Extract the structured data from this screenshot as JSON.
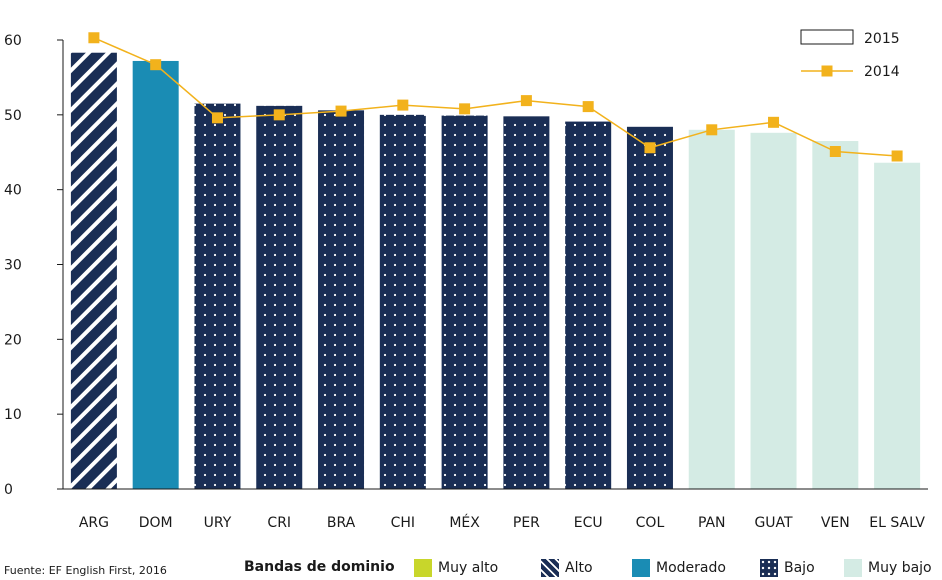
{
  "chart_data": {
    "type": "bar",
    "title": "",
    "xlabel": "",
    "ylabel": "",
    "ylim": [
      0,
      60
    ],
    "yticks": [
      0,
      10,
      20,
      30,
      40,
      50,
      60
    ],
    "categories": [
      "ARG",
      "DOM",
      "URY",
      "CRI",
      "BRA",
      "CHI",
      "MÉX",
      "PER",
      "ECU",
      "COL",
      "PAN",
      "GUAT",
      "VEN",
      "EL SALV"
    ],
    "series": [
      {
        "name": "2015",
        "kind": "bar",
        "values": [
          58.3,
          57.2,
          51.5,
          51.2,
          50.6,
          50.0,
          49.9,
          49.8,
          49.1,
          48.4,
          48.0,
          47.6,
          46.5,
          43.6
        ],
        "bands": [
          "Alto",
          "Moderado",
          "Bajo",
          "Bajo",
          "Bajo",
          "Bajo",
          "Bajo",
          "Bajo",
          "Bajo",
          "Bajo",
          "Muy bajo",
          "Muy bajo",
          "Muy bajo",
          "Muy bajo"
        ]
      },
      {
        "name": "2014",
        "kind": "line",
        "color": "#f2b21c",
        "values": [
          60.3,
          56.7,
          49.6,
          50.0,
          50.5,
          51.3,
          50.8,
          51.9,
          51.1,
          45.6,
          48.0,
          49.0,
          45.1,
          44.5
        ]
      }
    ],
    "legend": {
      "placement": "top-right",
      "entries": [
        "2015",
        "2014"
      ]
    }
  },
  "bands": {
    "title": "Bandas de dominio",
    "items": [
      {
        "label": "Muy alto",
        "color": "#c8d62b",
        "pattern": "solid"
      },
      {
        "label": "Alto",
        "color": "#1a2e55",
        "pattern": "stripes"
      },
      {
        "label": "Moderado",
        "color": "#1a8cb4",
        "pattern": "solid"
      },
      {
        "label": "Bajo",
        "color": "#1a2e55",
        "pattern": "dots"
      },
      {
        "label": "Muy bajo",
        "color": "#d4ebe4",
        "pattern": "solid"
      }
    ]
  },
  "source": "Fuente: EF English First, 2016"
}
